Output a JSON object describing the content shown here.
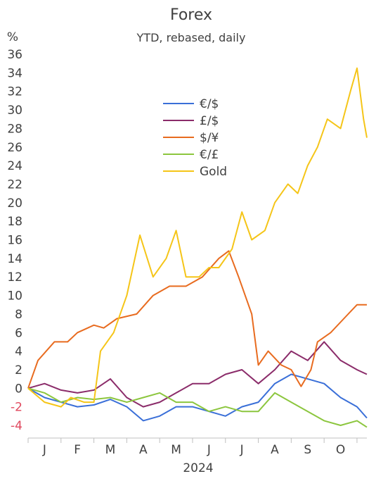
{
  "chart_data": {
    "type": "line",
    "title": "Forex",
    "subtitle": "YTD, rebased, daily",
    "ylabel": "%",
    "xlabel": "2024",
    "ylim": [
      -4,
      36
    ],
    "yticks": [
      36,
      34,
      32,
      30,
      28,
      26,
      24,
      22,
      20,
      18,
      16,
      14,
      12,
      10,
      8,
      6,
      4,
      2,
      0,
      -2,
      -4
    ],
    "xlim": [
      0,
      10.3
    ],
    "xticks": [
      {
        "label": "J",
        "x": 0.5
      },
      {
        "label": "F",
        "x": 1.5
      },
      {
        "label": "M",
        "x": 2.5
      },
      {
        "label": "A",
        "x": 3.5
      },
      {
        "label": "M",
        "x": 4.5
      },
      {
        "label": "J",
        "x": 5.5
      },
      {
        "label": "J",
        "x": 6.5
      },
      {
        "label": "A",
        "x": 7.5
      },
      {
        "label": "S",
        "x": 8.5
      },
      {
        "label": "O",
        "x": 9.5
      }
    ],
    "legend_position": "top-center",
    "grid": false,
    "series": [
      {
        "name": "€/$",
        "color": "#3a6fd8",
        "points": [
          [
            0,
            0
          ],
          [
            0.5,
            -1.0
          ],
          [
            1.0,
            -1.5
          ],
          [
            1.5,
            -2.0
          ],
          [
            2.0,
            -1.8
          ],
          [
            2.5,
            -1.2
          ],
          [
            3.0,
            -2.0
          ],
          [
            3.5,
            -3.5
          ],
          [
            4.0,
            -3.0
          ],
          [
            4.5,
            -2.0
          ],
          [
            5.0,
            -2.0
          ],
          [
            5.5,
            -2.5
          ],
          [
            6.0,
            -3.0
          ],
          [
            6.5,
            -2.0
          ],
          [
            7.0,
            -1.5
          ],
          [
            7.5,
            0.5
          ],
          [
            8.0,
            1.5
          ],
          [
            8.5,
            1.0
          ],
          [
            9.0,
            0.5
          ],
          [
            9.5,
            -1.0
          ],
          [
            10.0,
            -2.0
          ],
          [
            10.3,
            -3.2
          ]
        ]
      },
      {
        "name": "£/$",
        "color": "#8b2c6a",
        "points": [
          [
            0,
            0
          ],
          [
            0.5,
            0.5
          ],
          [
            1.0,
            -0.2
          ],
          [
            1.5,
            -0.5
          ],
          [
            2.0,
            -0.2
          ],
          [
            2.5,
            1.0
          ],
          [
            3.0,
            -1.0
          ],
          [
            3.5,
            -2.0
          ],
          [
            4.0,
            -1.5
          ],
          [
            4.5,
            -0.5
          ],
          [
            5.0,
            0.5
          ],
          [
            5.5,
            0.5
          ],
          [
            6.0,
            1.5
          ],
          [
            6.5,
            2.0
          ],
          [
            7.0,
            0.5
          ],
          [
            7.5,
            2.0
          ],
          [
            8.0,
            4.0
          ],
          [
            8.5,
            3.0
          ],
          [
            9.0,
            5.0
          ],
          [
            9.5,
            3.0
          ],
          [
            10.0,
            2.0
          ],
          [
            10.3,
            1.5
          ]
        ]
      },
      {
        "name": "$/¥",
        "color": "#e86b1f",
        "points": [
          [
            0,
            0
          ],
          [
            0.3,
            3.0
          ],
          [
            0.8,
            5.0
          ],
          [
            1.2,
            5.0
          ],
          [
            1.5,
            6.0
          ],
          [
            2.0,
            6.8
          ],
          [
            2.3,
            6.5
          ],
          [
            2.7,
            7.5
          ],
          [
            3.3,
            8.0
          ],
          [
            3.8,
            10.0
          ],
          [
            4.3,
            11.0
          ],
          [
            4.8,
            11.0
          ],
          [
            5.3,
            12.0
          ],
          [
            5.8,
            14.0
          ],
          [
            6.1,
            14.8
          ],
          [
            6.4,
            12.0
          ],
          [
            6.8,
            8.0
          ],
          [
            7.0,
            2.5
          ],
          [
            7.3,
            4.0
          ],
          [
            7.7,
            2.5
          ],
          [
            8.0,
            2.0
          ],
          [
            8.3,
            0.2
          ],
          [
            8.6,
            2.0
          ],
          [
            8.8,
            5.0
          ],
          [
            9.2,
            6.0
          ],
          [
            9.6,
            7.5
          ],
          [
            10.0,
            9.0
          ],
          [
            10.3,
            9.0
          ]
        ]
      },
      {
        "name": "€/£",
        "color": "#8cc63e",
        "points": [
          [
            0,
            0
          ],
          [
            0.5,
            -0.5
          ],
          [
            1.0,
            -1.5
          ],
          [
            1.5,
            -1.0
          ],
          [
            2.0,
            -1.2
          ],
          [
            2.5,
            -1.0
          ],
          [
            3.0,
            -1.5
          ],
          [
            3.5,
            -1.0
          ],
          [
            4.0,
            -0.5
          ],
          [
            4.5,
            -1.5
          ],
          [
            5.0,
            -1.5
          ],
          [
            5.5,
            -2.5
          ],
          [
            6.0,
            -2.0
          ],
          [
            6.5,
            -2.5
          ],
          [
            7.0,
            -2.5
          ],
          [
            7.5,
            -0.5
          ],
          [
            8.0,
            -1.5
          ],
          [
            8.5,
            -2.5
          ],
          [
            9.0,
            -3.5
          ],
          [
            9.5,
            -4.0
          ],
          [
            10.0,
            -3.5
          ],
          [
            10.3,
            -4.2
          ]
        ]
      },
      {
        "name": "Gold",
        "color": "#f5c518",
        "points": [
          [
            0,
            0
          ],
          [
            0.5,
            -1.5
          ],
          [
            1.0,
            -2.0
          ],
          [
            1.3,
            -1.0
          ],
          [
            1.7,
            -1.5
          ],
          [
            2.0,
            -1.5
          ],
          [
            2.2,
            4.0
          ],
          [
            2.6,
            6.0
          ],
          [
            3.0,
            10.0
          ],
          [
            3.4,
            16.5
          ],
          [
            3.8,
            12.0
          ],
          [
            4.2,
            14.0
          ],
          [
            4.5,
            17.0
          ],
          [
            4.8,
            12.0
          ],
          [
            5.2,
            12.0
          ],
          [
            5.5,
            13.0
          ],
          [
            5.8,
            13.0
          ],
          [
            6.2,
            15.0
          ],
          [
            6.5,
            19.0
          ],
          [
            6.8,
            16.0
          ],
          [
            7.2,
            17.0
          ],
          [
            7.5,
            20.0
          ],
          [
            7.9,
            22.0
          ],
          [
            8.2,
            21.0
          ],
          [
            8.5,
            24.0
          ],
          [
            8.8,
            26.0
          ],
          [
            9.1,
            29.0
          ],
          [
            9.5,
            28.0
          ],
          [
            9.8,
            32.0
          ],
          [
            10.0,
            34.5
          ],
          [
            10.2,
            29.0
          ],
          [
            10.3,
            27.0
          ]
        ]
      }
    ]
  }
}
